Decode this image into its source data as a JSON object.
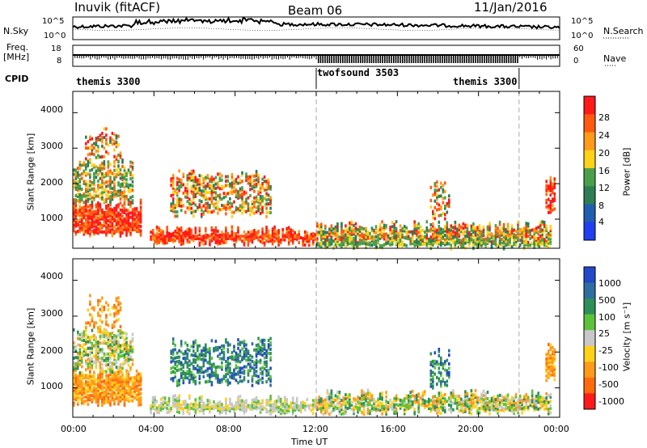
{
  "header": {
    "site": "Inuvik (fitACF)",
    "beam": "Beam 06",
    "date": "11/Jan/2016"
  },
  "top_panels": {
    "nsky_label": "N.Sky",
    "nsearch_label": "N.Search",
    "noise_ticks": [
      "10^5",
      "10^0"
    ],
    "freq_label_1": "Freq.",
    "freq_label_2": "[MHz]",
    "freq_ticks": [
      "18",
      "8"
    ],
    "nave_label": "Nave",
    "nave_ticks": [
      "60",
      "0"
    ],
    "cpid_label": "CPID",
    "cpid_segments": [
      {
        "label": "themis 3300",
        "start_hour": 0
      },
      {
        "label": "twofsound 3503",
        "start_hour": 12
      },
      {
        "label": "themis 3300",
        "start_hour": 22
      }
    ]
  },
  "axes": {
    "xlabel": "Time UT",
    "x_ticks": [
      "00:00",
      "04:00",
      "08:00",
      "12:00",
      "16:00",
      "20:00",
      "00:00"
    ],
    "ylabel": "Slant Range [km]",
    "y_ticks": [
      "1000",
      "2000",
      "3000",
      "4000"
    ]
  },
  "colorbars": {
    "power": {
      "label": "Power [dB]",
      "ticks": [
        "4",
        "8",
        "12",
        "16",
        "20",
        "24",
        "28"
      ],
      "colors": [
        "#1f3ff0",
        "#1f5fb0",
        "#2e7d55",
        "#4aa04a",
        "#ffd21a",
        "#ff9a1a",
        "#ff5a10",
        "#ff1a1a"
      ]
    },
    "velocity": {
      "label": "Velocity [m s⁻¹]",
      "ticks": [
        "1000",
        "500",
        "100",
        "25",
        "-25",
        "-100",
        "-500",
        "-1000"
      ],
      "colors": [
        "#2348c8",
        "#2f6ea0",
        "#2f8f5a",
        "#5cc23a",
        "#c8c8c8",
        "#ffd21a",
        "#ff9a1a",
        "#ff6a10",
        "#ff1a1a"
      ]
    }
  },
  "chart_data": [
    {
      "type": "heatmap",
      "name": "power",
      "xlabel": "Time UT",
      "ylabel": "Slant Range [km]",
      "xlim": [
        0,
        24
      ],
      "ylim": [
        180,
        4600
      ],
      "colorbar_label": "Power [dB]",
      "colorbar_ticks": [
        4,
        8,
        12,
        16,
        20,
        24,
        28
      ],
      "regions": [
        {
          "t0": 0.0,
          "t1": 3.4,
          "r0": 550,
          "r1": 1450,
          "level": "high"
        },
        {
          "t0": 0.0,
          "t1": 3.0,
          "r0": 1450,
          "r1": 2600,
          "level": "mid"
        },
        {
          "t0": 0.6,
          "t1": 2.4,
          "r0": 2600,
          "r1": 3500,
          "level": "mixed"
        },
        {
          "t0": 3.8,
          "t1": 12.0,
          "r0": 300,
          "r1": 700,
          "level": "high"
        },
        {
          "t0": 4.8,
          "t1": 9.8,
          "r0": 1100,
          "r1": 2300,
          "level": "mixed"
        },
        {
          "t0": 12.0,
          "t1": 23.6,
          "r0": 300,
          "r1": 850,
          "level": "mixed"
        },
        {
          "t0": 23.3,
          "t1": 23.8,
          "r0": 1200,
          "r1": 2200,
          "level": "high"
        }
      ]
    },
    {
      "type": "heatmap",
      "name": "velocity",
      "xlabel": "Time UT",
      "ylabel": "Slant Range [km]",
      "xlim": [
        0,
        24
      ],
      "ylim": [
        180,
        4600
      ],
      "colorbar_label": "Velocity [m s⁻¹]",
      "colorbar_ticks": [
        1000,
        500,
        100,
        25,
        -25,
        -100,
        -500,
        -1000
      ],
      "regions": [
        {
          "t0": 0.0,
          "t1": 3.4,
          "r0": 550,
          "r1": 1450,
          "velocity": "negative"
        },
        {
          "t0": 0.0,
          "t1": 3.0,
          "r0": 1450,
          "r1": 2600,
          "velocity": "mixed"
        },
        {
          "t0": 4.8,
          "t1": 9.8,
          "r0": 1100,
          "r1": 2300,
          "velocity": "positive"
        },
        {
          "t0": 3.8,
          "t1": 12.0,
          "r0": 300,
          "r1": 700,
          "velocity": "near-zero"
        },
        {
          "t0": 12.0,
          "t1": 23.6,
          "r0": 300,
          "r1": 850,
          "velocity": "mixed"
        },
        {
          "t0": 23.3,
          "t1": 23.8,
          "r0": 1200,
          "r1": 2200,
          "velocity": "negative"
        }
      ]
    }
  ]
}
